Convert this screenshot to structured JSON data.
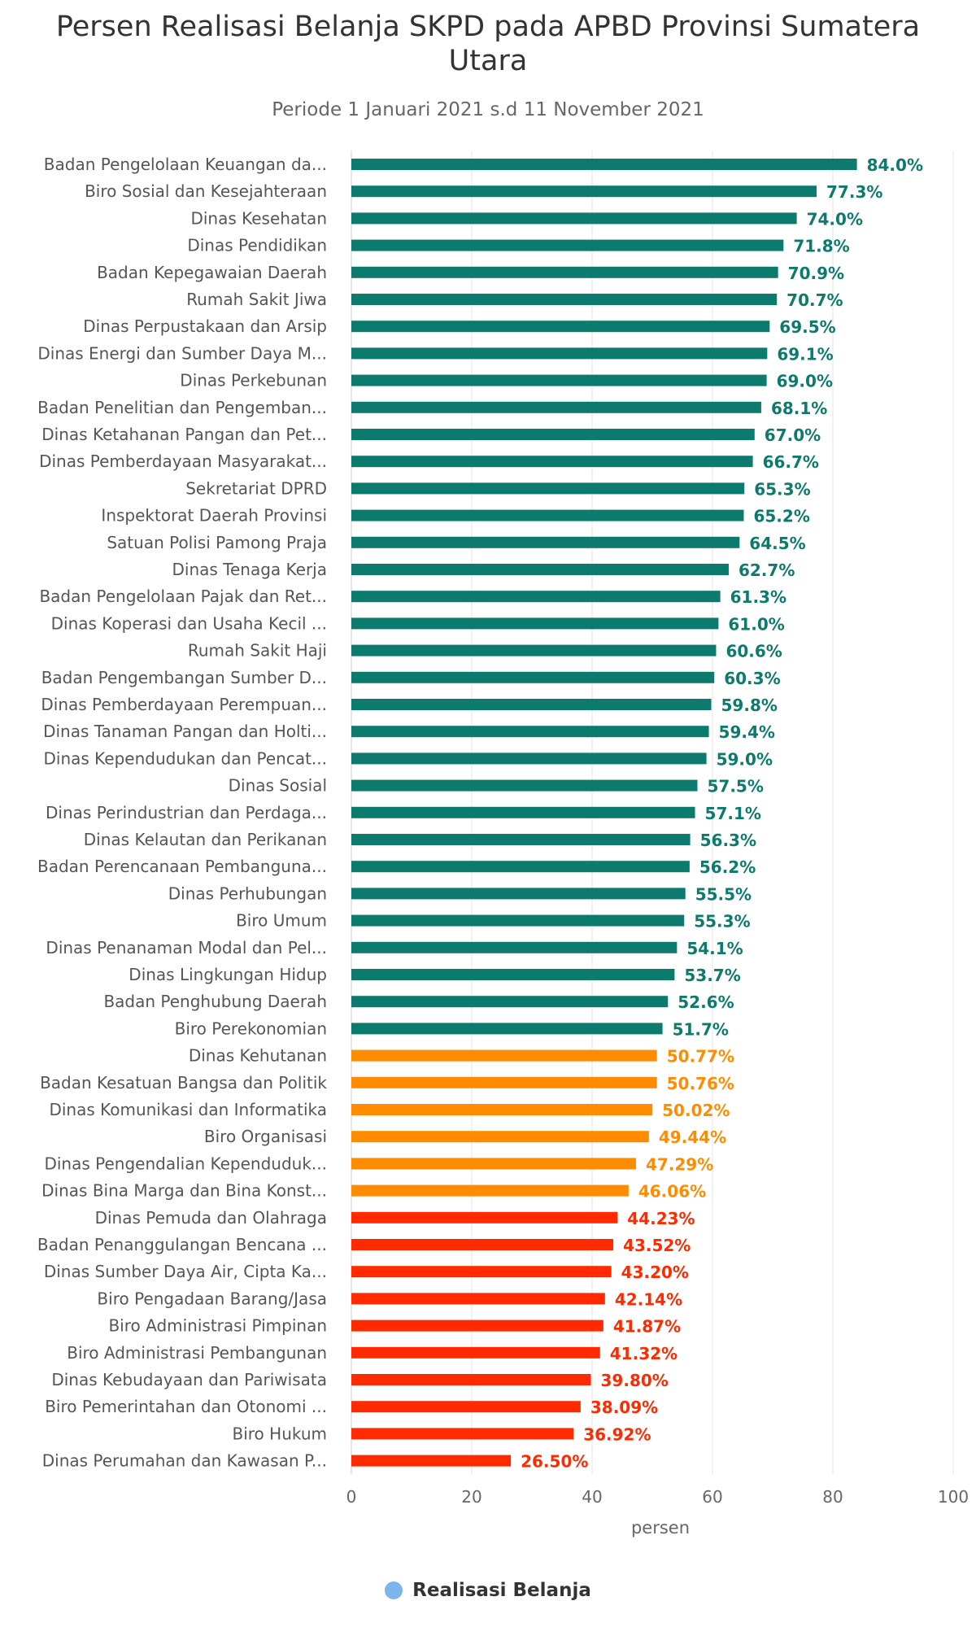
{
  "chart_data": {
    "type": "bar",
    "orientation": "horizontal",
    "title": "Persen Realisasi Belanja SKPD pada APBD Provinsi Sumatera Utara",
    "subtitle": "Periode 1 Januari 2021 s.d 11 November 2021",
    "xlabel": "persen",
    "xlim": [
      0,
      100
    ],
    "ticks": [
      0,
      20,
      40,
      60,
      80,
      100
    ],
    "grid": true,
    "legend_position": "bottom-center",
    "series": [
      {
        "name": "Realisasi Belanja",
        "legend_color": "#7cb5ec"
      }
    ],
    "colors": {
      "high": "#0d7a6e",
      "mid": "#ff8c00",
      "low": "#ff2a00"
    },
    "bars": [
      {
        "category": "Badan Pengelolaan Keuangan da...",
        "value": 84.0,
        "label": "84.0%",
        "level": "high"
      },
      {
        "category": "Biro Sosial dan Kesejahteraan",
        "value": 77.3,
        "label": "77.3%",
        "level": "high"
      },
      {
        "category": "Dinas Kesehatan",
        "value": 74.0,
        "label": "74.0%",
        "level": "high"
      },
      {
        "category": "Dinas Pendidikan",
        "value": 71.8,
        "label": "71.8%",
        "level": "high"
      },
      {
        "category": "Badan Kepegawaian Daerah",
        "value": 70.9,
        "label": "70.9%",
        "level": "high"
      },
      {
        "category": "Rumah Sakit Jiwa",
        "value": 70.7,
        "label": "70.7%",
        "level": "high"
      },
      {
        "category": "Dinas Perpustakaan dan Arsip",
        "value": 69.5,
        "label": "69.5%",
        "level": "high"
      },
      {
        "category": "Dinas Energi dan Sumber Daya M...",
        "value": 69.1,
        "label": "69.1%",
        "level": "high"
      },
      {
        "category": "Dinas Perkebunan",
        "value": 69.0,
        "label": "69.0%",
        "level": "high"
      },
      {
        "category": "Badan Penelitian dan Pengemban...",
        "value": 68.1,
        "label": "68.1%",
        "level": "high"
      },
      {
        "category": "Dinas Ketahanan Pangan dan Pet...",
        "value": 67.0,
        "label": "67.0%",
        "level": "high"
      },
      {
        "category": "Dinas Pemberdayaan Masyarakat...",
        "value": 66.7,
        "label": "66.7%",
        "level": "high"
      },
      {
        "category": "Sekretariat DPRD",
        "value": 65.3,
        "label": "65.3%",
        "level": "high"
      },
      {
        "category": "Inspektorat Daerah Provinsi",
        "value": 65.2,
        "label": "65.2%",
        "level": "high"
      },
      {
        "category": "Satuan Polisi Pamong Praja",
        "value": 64.5,
        "label": "64.5%",
        "level": "high"
      },
      {
        "category": "Dinas Tenaga Kerja",
        "value": 62.7,
        "label": "62.7%",
        "level": "high"
      },
      {
        "category": "Badan Pengelolaan Pajak dan Ret...",
        "value": 61.3,
        "label": "61.3%",
        "level": "high"
      },
      {
        "category": "Dinas Koperasi dan Usaha Kecil ...",
        "value": 61.0,
        "label": "61.0%",
        "level": "high"
      },
      {
        "category": "Rumah Sakit Haji",
        "value": 60.6,
        "label": "60.6%",
        "level": "high"
      },
      {
        "category": "Badan Pengembangan Sumber D...",
        "value": 60.3,
        "label": "60.3%",
        "level": "high"
      },
      {
        "category": "Dinas Pemberdayaan Perempuan...",
        "value": 59.8,
        "label": "59.8%",
        "level": "high"
      },
      {
        "category": "Dinas Tanaman Pangan dan Holti...",
        "value": 59.4,
        "label": "59.4%",
        "level": "high"
      },
      {
        "category": "Dinas Kependudukan dan Pencat...",
        "value": 59.0,
        "label": "59.0%",
        "level": "high"
      },
      {
        "category": "Dinas Sosial",
        "value": 57.5,
        "label": "57.5%",
        "level": "high"
      },
      {
        "category": "Dinas Perindustrian dan Perdaga...",
        "value": 57.1,
        "label": "57.1%",
        "level": "high"
      },
      {
        "category": "Dinas Kelautan dan Perikanan",
        "value": 56.3,
        "label": "56.3%",
        "level": "high"
      },
      {
        "category": "Badan Perencanaan Pembanguna...",
        "value": 56.2,
        "label": "56.2%",
        "level": "high"
      },
      {
        "category": "Dinas Perhubungan",
        "value": 55.5,
        "label": "55.5%",
        "level": "high"
      },
      {
        "category": "Biro Umum",
        "value": 55.3,
        "label": "55.3%",
        "level": "high"
      },
      {
        "category": "Dinas Penanaman Modal dan Pel...",
        "value": 54.1,
        "label": "54.1%",
        "level": "high"
      },
      {
        "category": "Dinas Lingkungan Hidup",
        "value": 53.7,
        "label": "53.7%",
        "level": "high"
      },
      {
        "category": "Badan Penghubung Daerah",
        "value": 52.6,
        "label": "52.6%",
        "level": "high"
      },
      {
        "category": "Biro Perekonomian",
        "value": 51.7,
        "label": "51.7%",
        "level": "high"
      },
      {
        "category": "Dinas Kehutanan",
        "value": 50.77,
        "label": "50.77%",
        "level": "mid"
      },
      {
        "category": "Badan Kesatuan Bangsa dan Politik",
        "value": 50.76,
        "label": "50.76%",
        "level": "mid"
      },
      {
        "category": "Dinas Komunikasi dan Informatika",
        "value": 50.02,
        "label": "50.02%",
        "level": "mid"
      },
      {
        "category": "Biro Organisasi",
        "value": 49.44,
        "label": "49.44%",
        "level": "mid"
      },
      {
        "category": "Dinas Pengendalian Kependuduk...",
        "value": 47.29,
        "label": "47.29%",
        "level": "mid"
      },
      {
        "category": "Dinas Bina Marga dan Bina Konst...",
        "value": 46.06,
        "label": "46.06%",
        "level": "mid"
      },
      {
        "category": "Dinas Pemuda dan Olahraga",
        "value": 44.23,
        "label": "44.23%",
        "level": "low"
      },
      {
        "category": "Badan Penanggulangan Bencana ...",
        "value": 43.52,
        "label": "43.52%",
        "level": "low"
      },
      {
        "category": "Dinas Sumber Daya Air, Cipta Ka...",
        "value": 43.2,
        "label": "43.20%",
        "level": "low"
      },
      {
        "category": "Biro Pengadaan Barang/Jasa",
        "value": 42.14,
        "label": "42.14%",
        "level": "low"
      },
      {
        "category": "Biro Administrasi Pimpinan",
        "value": 41.87,
        "label": "41.87%",
        "level": "low"
      },
      {
        "category": "Biro Administrasi Pembangunan",
        "value": 41.32,
        "label": "41.32%",
        "level": "low"
      },
      {
        "category": "Dinas Kebudayaan dan Pariwisata",
        "value": 39.8,
        "label": "39.80%",
        "level": "low"
      },
      {
        "category": "Biro Pemerintahan dan Otonomi ...",
        "value": 38.09,
        "label": "38.09%",
        "level": "low"
      },
      {
        "category": "Biro Hukum",
        "value": 36.92,
        "label": "36.92%",
        "level": "low"
      },
      {
        "category": "Dinas Perumahan dan Kawasan P...",
        "value": 26.5,
        "label": "26.50%",
        "level": "low"
      }
    ]
  }
}
